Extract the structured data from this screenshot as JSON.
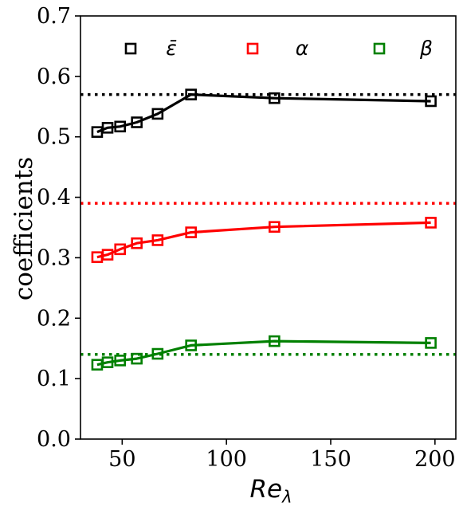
{
  "chart_data": {
    "type": "line",
    "title": "",
    "xlabel": "Re",
    "xlabel_subscript": "λ",
    "ylabel": "coefficients",
    "xlim": [
      30,
      210
    ],
    "ylim": [
      0.0,
      0.7
    ],
    "xticks": [
      50,
      100,
      150,
      200
    ],
    "yticks": [
      0.0,
      0.1,
      0.2,
      0.3,
      0.4,
      0.5,
      0.6,
      0.7
    ],
    "xtick_labels": [
      "50",
      "100",
      "150",
      "200"
    ],
    "ytick_labels": [
      "0.0",
      "0.1",
      "0.2",
      "0.3",
      "0.4",
      "0.5",
      "0.6",
      "0.7"
    ],
    "grid": false,
    "legend_position": "top",
    "x": [
      38,
      43,
      49,
      57,
      67,
      83,
      123,
      198
    ],
    "series": [
      {
        "name": "ε̄",
        "color": "#000000",
        "marker": "square-open",
        "values": [
          0.508,
          0.515,
          0.517,
          0.524,
          0.538,
          0.57,
          0.564,
          0.559
        ],
        "reference_line": 0.57
      },
      {
        "name": "α",
        "color": "#ff0000",
        "marker": "square-open",
        "values": [
          0.301,
          0.305,
          0.314,
          0.324,
          0.329,
          0.342,
          0.351,
          0.358
        ],
        "reference_line": 0.39
      },
      {
        "name": "β",
        "color": "#008000",
        "marker": "square-open",
        "values": [
          0.123,
          0.127,
          0.13,
          0.133,
          0.141,
          0.155,
          0.162,
          0.159
        ],
        "reference_line": 0.14
      }
    ]
  }
}
